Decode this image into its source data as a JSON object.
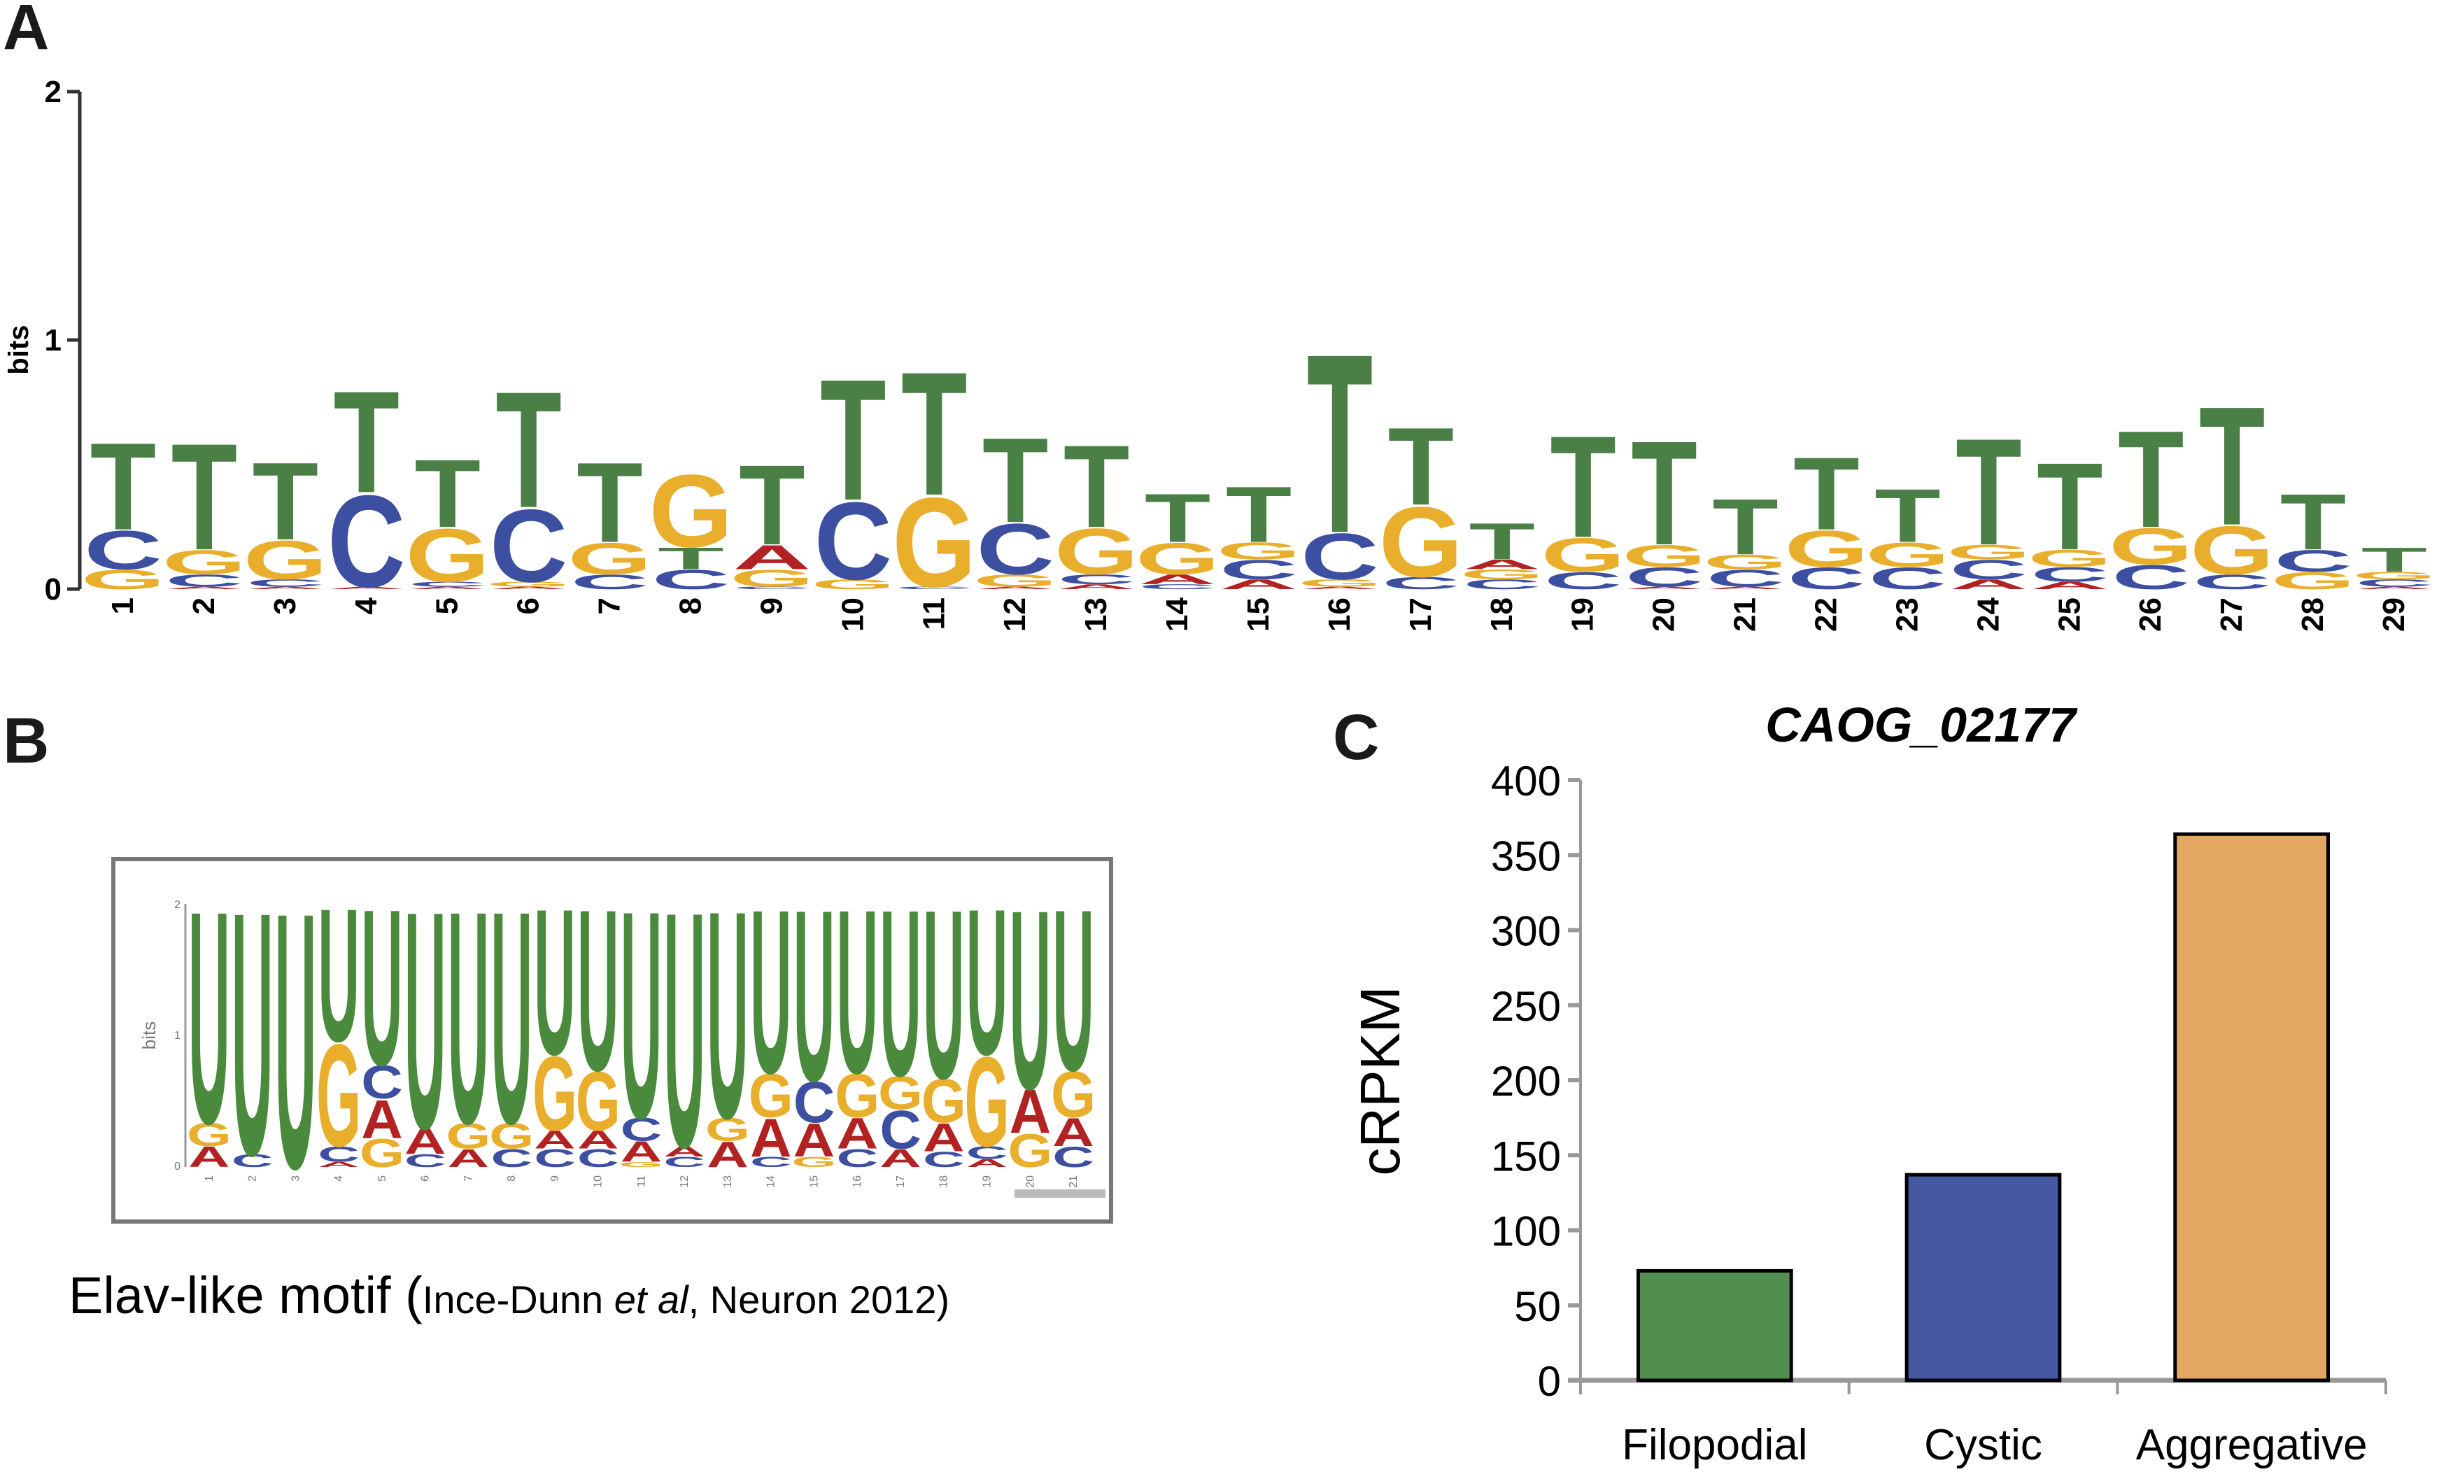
{
  "panels": {
    "a_label": "A",
    "b_label": "B",
    "c_label": "C"
  },
  "colors": {
    "A": "#b22222",
    "C": "#3d4fa1",
    "G": "#e9ae2c",
    "T": "#4a7f46",
    "U": "#4a8a3c",
    "bar_filopodial": "#528e4e",
    "bar_cystic": "#4658a1",
    "bar_aggregative": "#e4a761"
  },
  "chart_data": [
    {
      "type": "sequence_logo",
      "panel": "A",
      "ylabel": "bits",
      "ylim": [
        0,
        2
      ],
      "yticks": [
        "0",
        "1",
        "2"
      ],
      "positions": [
        "1",
        "2",
        "3",
        "4",
        "5",
        "6",
        "7",
        "8",
        "9",
        "10",
        "11",
        "12",
        "13",
        "14",
        "15",
        "16",
        "17",
        "18",
        "19",
        "20",
        "21",
        "22",
        "23",
        "24",
        "25",
        "26",
        "27",
        "28",
        "29"
      ],
      "stacks": [
        [
          [
            "G",
            0.08
          ],
          [
            "C",
            0.16
          ],
          [
            "T",
            0.36
          ]
        ],
        [
          [
            "A",
            0.01
          ],
          [
            "C",
            0.05
          ],
          [
            "G",
            0.1
          ],
          [
            "T",
            0.44
          ]
        ],
        [
          [
            "A",
            0.01
          ],
          [
            "C",
            0.03
          ],
          [
            "G",
            0.16
          ],
          [
            "T",
            0.32
          ]
        ],
        [
          [
            "A",
            0.01
          ],
          [
            "C",
            0.38
          ],
          [
            "T",
            0.42
          ]
        ],
        [
          [
            "A",
            0.01
          ],
          [
            "C",
            0.02
          ],
          [
            "G",
            0.22
          ],
          [
            "T",
            0.28
          ]
        ],
        [
          [
            "A",
            0.01
          ],
          [
            "G",
            0.02
          ],
          [
            "C",
            0.3
          ],
          [
            "T",
            0.48
          ]
        ],
        [
          [
            "C",
            0.06
          ],
          [
            "G",
            0.13
          ],
          [
            "T",
            0.33
          ]
        ],
        [
          [
            "C",
            0.08
          ],
          [
            "T",
            0.09
          ],
          [
            "G",
            0.3
          ]
        ],
        [
          [
            "C",
            0.01
          ],
          [
            "G",
            0.07
          ],
          [
            "A",
            0.1
          ],
          [
            "T",
            0.33
          ]
        ],
        [
          [
            "G",
            0.04
          ],
          [
            "C",
            0.32
          ],
          [
            "T",
            0.5
          ]
        ],
        [
          [
            "C",
            0.01
          ],
          [
            "G",
            0.37
          ],
          [
            "T",
            0.51
          ]
        ],
        [
          [
            "A",
            0.01
          ],
          [
            "G",
            0.05
          ],
          [
            "C",
            0.21
          ],
          [
            "T",
            0.35
          ]
        ],
        [
          [
            "A",
            0.02
          ],
          [
            "C",
            0.04
          ],
          [
            "G",
            0.19
          ],
          [
            "T",
            0.34
          ]
        ],
        [
          [
            "C",
            0.02
          ],
          [
            "A",
            0.04
          ],
          [
            "G",
            0.13
          ],
          [
            "T",
            0.2
          ]
        ],
        [
          [
            "A",
            0.04
          ],
          [
            "C",
            0.08
          ],
          [
            "G",
            0.07
          ],
          [
            "T",
            0.23
          ]
        ],
        [
          [
            "A",
            0.01
          ],
          [
            "G",
            0.03
          ],
          [
            "C",
            0.19
          ],
          [
            "T",
            0.74
          ]
        ],
        [
          [
            "C",
            0.05
          ],
          [
            "G",
            0.29
          ],
          [
            "T",
            0.32
          ]
        ],
        [
          [
            "C",
            0.04
          ],
          [
            "G",
            0.04
          ],
          [
            "A",
            0.04
          ],
          [
            "T",
            0.15
          ]
        ],
        [
          [
            "C",
            0.07
          ],
          [
            "G",
            0.14
          ],
          [
            "T",
            0.42
          ]
        ],
        [
          [
            "A",
            0.01
          ],
          [
            "C",
            0.08
          ],
          [
            "G",
            0.09
          ],
          [
            "T",
            0.43
          ]
        ],
        [
          [
            "A",
            0.01
          ],
          [
            "C",
            0.07
          ],
          [
            "G",
            0.06
          ],
          [
            "T",
            0.23
          ]
        ],
        [
          [
            "C",
            0.09
          ],
          [
            "G",
            0.15
          ],
          [
            "T",
            0.3
          ]
        ],
        [
          [
            "C",
            0.09
          ],
          [
            "G",
            0.1
          ],
          [
            "T",
            0.22
          ]
        ],
        [
          [
            "A",
            0.04
          ],
          [
            "C",
            0.08
          ],
          [
            "G",
            0.06
          ],
          [
            "T",
            0.44
          ]
        ],
        [
          [
            "A",
            0.03
          ],
          [
            "C",
            0.06
          ],
          [
            "G",
            0.07
          ],
          [
            "T",
            0.36
          ]
        ],
        [
          [
            "C",
            0.1
          ],
          [
            "G",
            0.15
          ],
          [
            "T",
            0.4
          ]
        ],
        [
          [
            "C",
            0.06
          ],
          [
            "G",
            0.2
          ],
          [
            "T",
            0.49
          ]
        ],
        [
          [
            "G",
            0.07
          ],
          [
            "C",
            0.09
          ],
          [
            "T",
            0.23
          ]
        ],
        [
          [
            "A",
            0.01
          ],
          [
            "C",
            0.03
          ],
          [
            "G",
            0.03
          ],
          [
            "T",
            0.1
          ]
        ]
      ]
    },
    {
      "type": "sequence_logo",
      "panel": "B",
      "ylabel": "bits",
      "ylim": [
        0,
        2
      ],
      "yticks": [
        "0",
        "1",
        "2"
      ],
      "positions": [
        "1",
        "2",
        "3",
        "4",
        "5",
        "6",
        "7",
        "8",
        "9",
        "10",
        "11",
        "12",
        "13",
        "14",
        "15",
        "16",
        "17",
        "18",
        "19",
        "20",
        "21"
      ],
      "stacks": [
        [
          [
            "A",
            0.16
          ],
          [
            "G",
            0.18
          ],
          [
            "U",
            1.66
          ]
        ],
        [
          [
            "C",
            0.1
          ],
          [
            "U",
            1.9
          ]
        ],
        [
          [
            "U",
            2.0
          ]
        ],
        [
          [
            "A",
            0.04
          ],
          [
            "C",
            0.12
          ],
          [
            "G",
            0.8
          ],
          [
            "U",
            1.04
          ]
        ],
        [
          [
            "G",
            0.22
          ],
          [
            "A",
            0.3
          ],
          [
            "C",
            0.26
          ],
          [
            "U",
            1.22
          ]
        ],
        [
          [
            "C",
            0.1
          ],
          [
            "A",
            0.2
          ],
          [
            "U",
            1.7
          ]
        ],
        [
          [
            "A",
            0.14
          ],
          [
            "G",
            0.2
          ],
          [
            "U",
            1.66
          ]
        ],
        [
          [
            "C",
            0.14
          ],
          [
            "G",
            0.2
          ],
          [
            "U",
            1.66
          ]
        ],
        [
          [
            "C",
            0.14
          ],
          [
            "A",
            0.14
          ],
          [
            "G",
            0.58
          ],
          [
            "U",
            1.14
          ]
        ],
        [
          [
            "C",
            0.14
          ],
          [
            "A",
            0.14
          ],
          [
            "G",
            0.46
          ],
          [
            "U",
            1.26
          ]
        ],
        [
          [
            "G",
            0.04
          ],
          [
            "A",
            0.16
          ],
          [
            "C",
            0.18
          ],
          [
            "U",
            1.62
          ]
        ],
        [
          [
            "C",
            0.08
          ],
          [
            "A",
            0.08
          ],
          [
            "U",
            1.84
          ]
        ],
        [
          [
            "A",
            0.2
          ],
          [
            "G",
            0.18
          ],
          [
            "U",
            1.62
          ]
        ],
        [
          [
            "C",
            0.08
          ],
          [
            "A",
            0.3
          ],
          [
            "G",
            0.34
          ],
          [
            "U",
            1.28
          ]
        ],
        [
          [
            "G",
            0.08
          ],
          [
            "A",
            0.26
          ],
          [
            "C",
            0.32
          ],
          [
            "U",
            1.34
          ]
        ],
        [
          [
            "C",
            0.14
          ],
          [
            "A",
            0.24
          ],
          [
            "G",
            0.34
          ],
          [
            "U",
            1.28
          ]
        ],
        [
          [
            "A",
            0.14
          ],
          [
            "C",
            0.3
          ],
          [
            "G",
            0.26
          ],
          [
            "U",
            1.3
          ]
        ],
        [
          [
            "C",
            0.12
          ],
          [
            "A",
            0.22
          ],
          [
            "G",
            0.34
          ],
          [
            "U",
            1.32
          ]
        ],
        [
          [
            "A",
            0.06
          ],
          [
            "C",
            0.1
          ],
          [
            "G",
            0.7
          ],
          [
            "U",
            1.14
          ]
        ],
        [
          [
            "G",
            0.26
          ],
          [
            "A",
            0.34
          ],
          [
            "U",
            1.4
          ]
        ],
        [
          [
            "C",
            0.16
          ],
          [
            "A",
            0.22
          ],
          [
            "G",
            0.36
          ],
          [
            "U",
            1.26
          ]
        ]
      ],
      "caption_main": "Elav-like motif (",
      "caption_ref_a": "Ince-Dunn ",
      "caption_ref_italic": "et al",
      "caption_ref_b": ", Neuron 2012)"
    },
    {
      "type": "bar",
      "panel": "C",
      "title": "CAOG_02177",
      "xlabel": "",
      "ylabel": "cRPKM",
      "ylim": [
        0,
        400
      ],
      "yticks": [
        0,
        50,
        100,
        150,
        200,
        250,
        300,
        350,
        400
      ],
      "categories": [
        "Filopodial",
        "Cystic",
        "Aggregative"
      ],
      "values": [
        73,
        137,
        364
      ],
      "grid": false
    }
  ]
}
